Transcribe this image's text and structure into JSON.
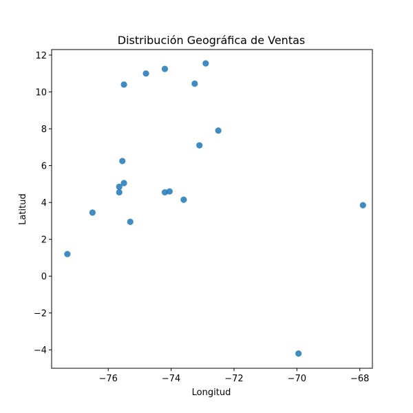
{
  "chart_data": {
    "type": "scatter",
    "title": "Distribución Geográfica de Ventas",
    "xlabel": "Longitud",
    "ylabel": "Latitud",
    "xlim": [
      -77.8,
      -67.6
    ],
    "ylim": [
      -5.0,
      12.3
    ],
    "grid": false,
    "legend": "none",
    "point_color": "#1f77b4",
    "x_ticks": [
      -76,
      -74,
      -72,
      -70,
      -68
    ],
    "x_tick_labels": [
      "−76",
      "−74",
      "−72",
      "−70",
      "−68"
    ],
    "y_ticks": [
      -4,
      -2,
      0,
      2,
      4,
      6,
      8,
      10,
      12
    ],
    "y_tick_labels": [
      "−4",
      "−2",
      "0",
      "2",
      "4",
      "6",
      "8",
      "10",
      "12"
    ],
    "points": [
      {
        "x": -72.9,
        "y": 11.55
      },
      {
        "x": -74.2,
        "y": 11.25
      },
      {
        "x": -74.8,
        "y": 11.0
      },
      {
        "x": -75.5,
        "y": 10.4
      },
      {
        "x": -73.25,
        "y": 10.45
      },
      {
        "x": -72.5,
        "y": 7.9
      },
      {
        "x": -73.1,
        "y": 7.1
      },
      {
        "x": -75.55,
        "y": 6.25
      },
      {
        "x": -75.5,
        "y": 5.05
      },
      {
        "x": -75.65,
        "y": 4.85
      },
      {
        "x": -75.65,
        "y": 4.55
      },
      {
        "x": -74.2,
        "y": 4.55
      },
      {
        "x": -74.05,
        "y": 4.6
      },
      {
        "x": -73.6,
        "y": 4.15
      },
      {
        "x": -67.9,
        "y": 3.85
      },
      {
        "x": -76.5,
        "y": 3.45
      },
      {
        "x": -75.3,
        "y": 2.95
      },
      {
        "x": -77.3,
        "y": 1.2
      },
      {
        "x": -69.95,
        "y": -4.2
      }
    ]
  }
}
